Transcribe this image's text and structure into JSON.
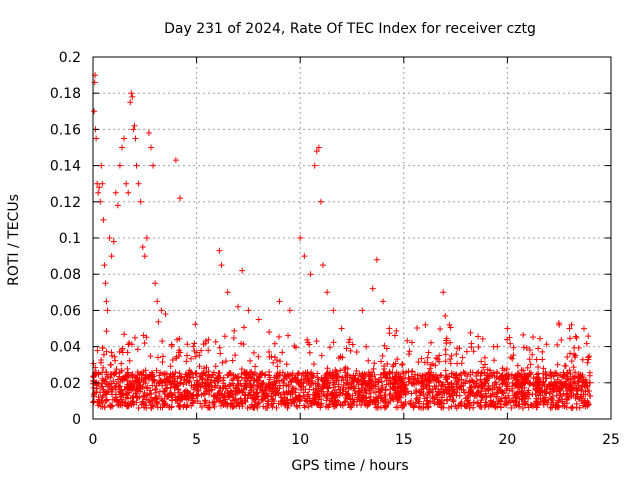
{
  "chart_data": {
    "type": "scatter",
    "title": "Day 231 of 2024, Rate Of TEC Index for receiver cztg",
    "xlabel": "GPS time / hours",
    "ylabel": "ROTI / TECUs",
    "xlim": [
      0,
      25
    ],
    "ylim": [
      0,
      0.2
    ],
    "x_ticks": [
      "0",
      "5",
      "10",
      "15",
      "20",
      "25"
    ],
    "y_ticks": [
      "0",
      "0.02",
      "0.04",
      "0.06",
      "0.08",
      "0.1",
      "0.12",
      "0.14",
      "0.16",
      "0.18",
      "0.2"
    ],
    "grid": true,
    "marker": "+",
    "series_color": "#ff0000",
    "series": [
      {
        "x": [
          0.05,
          0.08,
          0.1,
          0.12,
          0.15,
          0.2,
          0.25,
          0.3,
          0.35,
          0.4,
          0.45,
          0.5,
          0.55,
          0.6,
          0.65,
          0.7,
          0.8,
          0.9,
          1.0,
          1.1,
          1.2,
          1.3,
          1.4,
          1.5,
          1.6,
          1.7,
          1.8,
          1.85,
          1.9,
          1.95,
          2.0,
          2.05,
          2.1,
          2.2,
          2.3,
          2.4,
          2.5,
          2.6,
          2.7,
          2.8,
          2.9,
          3.0,
          3.1,
          3.3,
          3.5,
          4.0,
          4.2,
          6.1,
          6.2,
          6.5,
          7.0,
          7.2,
          7.5,
          8.0,
          8.5,
          9.0,
          9.5,
          10.0,
          10.2,
          10.5,
          10.7,
          10.8,
          10.9,
          11.0,
          11.1,
          11.3,
          11.6,
          12.0,
          13.0,
          13.5,
          13.7,
          14.0,
          14.3,
          16.9,
          17.0,
          17.2,
          20.0,
          20.1,
          22.5,
          23.0
        ],
        "y": [
          0.17,
          0.186,
          0.19,
          0.16,
          0.155,
          0.13,
          0.125,
          0.128,
          0.12,
          0.14,
          0.13,
          0.11,
          0.085,
          0.075,
          0.065,
          0.06,
          0.1,
          0.09,
          0.098,
          0.125,
          0.118,
          0.14,
          0.15,
          0.155,
          0.13,
          0.125,
          0.175,
          0.18,
          0.178,
          0.16,
          0.162,
          0.155,
          0.14,
          0.13,
          0.12,
          0.095,
          0.09,
          0.1,
          0.158,
          0.15,
          0.14,
          0.075,
          0.065,
          0.06,
          0.058,
          0.143,
          0.122,
          0.093,
          0.085,
          0.07,
          0.062,
          0.082,
          0.06,
          0.055,
          0.048,
          0.065,
          0.06,
          0.1,
          0.09,
          0.08,
          0.14,
          0.148,
          0.15,
          0.12,
          0.085,
          0.07,
          0.06,
          0.05,
          0.06,
          0.072,
          0.088,
          0.065,
          0.05,
          0.07,
          0.057,
          0.052,
          0.05,
          0.045,
          0.052,
          0.05
        ]
      }
    ]
  }
}
